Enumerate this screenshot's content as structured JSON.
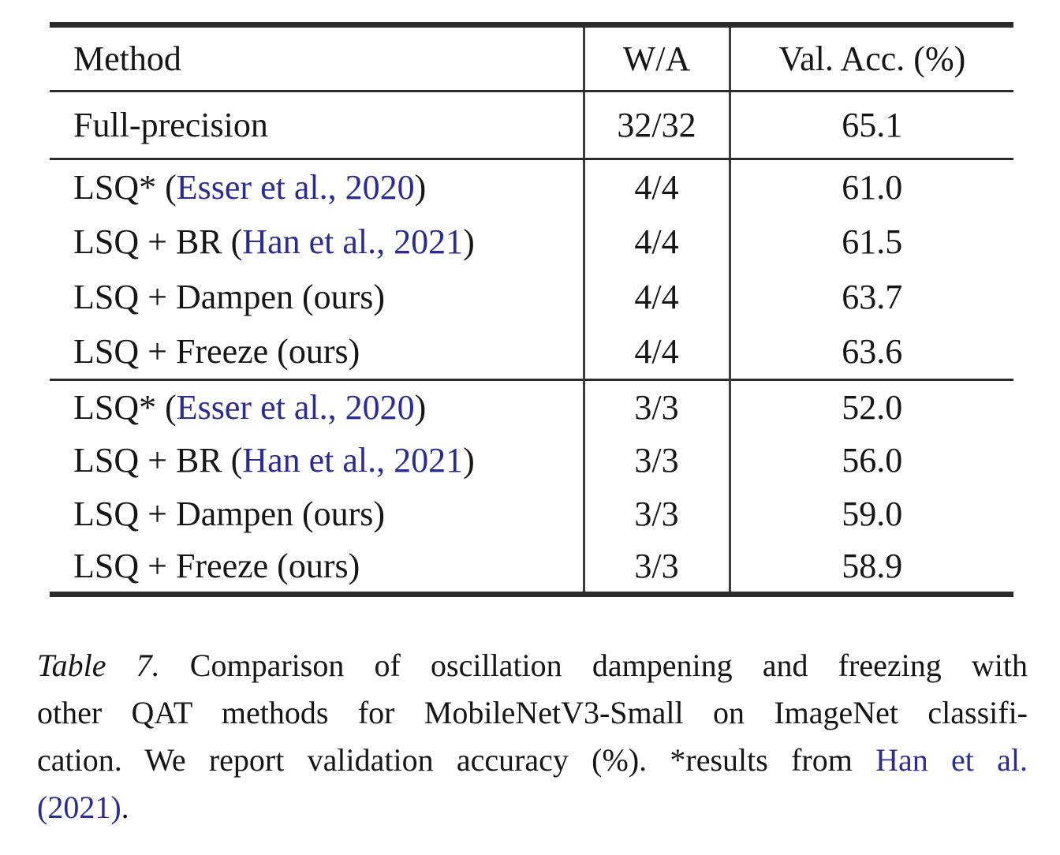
{
  "colors": {
    "link_blue": "#2b2b97",
    "text": "#161616",
    "rule": "#2b2b2b",
    "background": "#ffffff"
  },
  "table": {
    "header": {
      "method": "Method",
      "wa": "W/A",
      "acc": "Val. Acc. (%)"
    },
    "baseline": {
      "method": "Full-precision",
      "wa": "32/32",
      "acc": "65.1"
    },
    "section_4bit": {
      "rows": [
        {
          "pre": "LSQ* (",
          "cite": "Esser et al., 2020",
          "post": ")",
          "wa": "4/4",
          "acc": "61.0"
        },
        {
          "pre": "LSQ + BR (",
          "cite": "Han et al., 2021",
          "post": ")",
          "wa": "4/4",
          "acc": "61.5"
        },
        {
          "pre": "LSQ + Dampen (ours)",
          "cite": "",
          "post": "",
          "wa": "4/4",
          "acc": "63.7"
        },
        {
          "pre": "LSQ + Freeze (ours)",
          "cite": "",
          "post": "",
          "wa": "4/4",
          "acc": "63.6"
        }
      ]
    },
    "section_3bit": {
      "rows": [
        {
          "pre": "LSQ* (",
          "cite": "Esser et al., 2020",
          "post": ")",
          "wa": "3/3",
          "acc": "52.0"
        },
        {
          "pre": "LSQ + BR (",
          "cite": "Han et al., 2021",
          "post": ")",
          "wa": "3/3",
          "acc": "56.0"
        },
        {
          "pre": "LSQ + Dampen (ours)",
          "cite": "",
          "post": "",
          "wa": "3/3",
          "acc": "59.0"
        },
        {
          "pre": "LSQ + Freeze (ours)",
          "cite": "",
          "post": "",
          "wa": "3/3",
          "acc": "58.9"
        }
      ]
    }
  },
  "caption": {
    "lines": [
      {
        "label": "Table 7.",
        "text": " Comparison of oscillation dampening and freezing with"
      },
      {
        "text": "other QAT methods for MobileNetV3-Small on ImageNet classifi-"
      },
      {
        "text": "cation. We report validation accuracy (%). *results from ",
        "link": "Han et al."
      },
      {
        "link": "(2021)",
        "text": "."
      }
    ]
  }
}
